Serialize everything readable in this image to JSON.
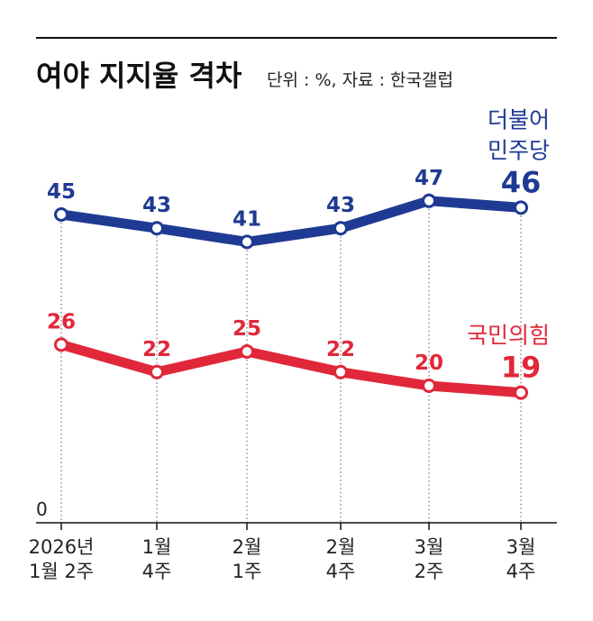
{
  "chart_data": {
    "type": "line",
    "title": "여야 지지율 격차",
    "subtitle": "단위 : %, 자료 : 한국갤럽",
    "categories": [
      [
        "2026년",
        "1월 2주"
      ],
      [
        "1월",
        "4주"
      ],
      [
        "2월",
        "1주"
      ],
      [
        "2월",
        "4주"
      ],
      [
        "3월",
        "2주"
      ],
      [
        "3월",
        "4주"
      ]
    ],
    "series": [
      {
        "name": "더불어 민주당",
        "name_lines": [
          "더불어",
          "민주당"
        ],
        "values": [
          45,
          43,
          41,
          43,
          47,
          46
        ],
        "color": "#1f3a93"
      },
      {
        "name": "국민의힘",
        "name_lines": [
          "국민의힘"
        ],
        "values": [
          26,
          22,
          25,
          22,
          20,
          19
        ],
        "color": "#e0283a"
      }
    ],
    "y_axis_label": "0",
    "ylim": [
      0,
      50
    ],
    "gridlines": "vertical dotted"
  }
}
